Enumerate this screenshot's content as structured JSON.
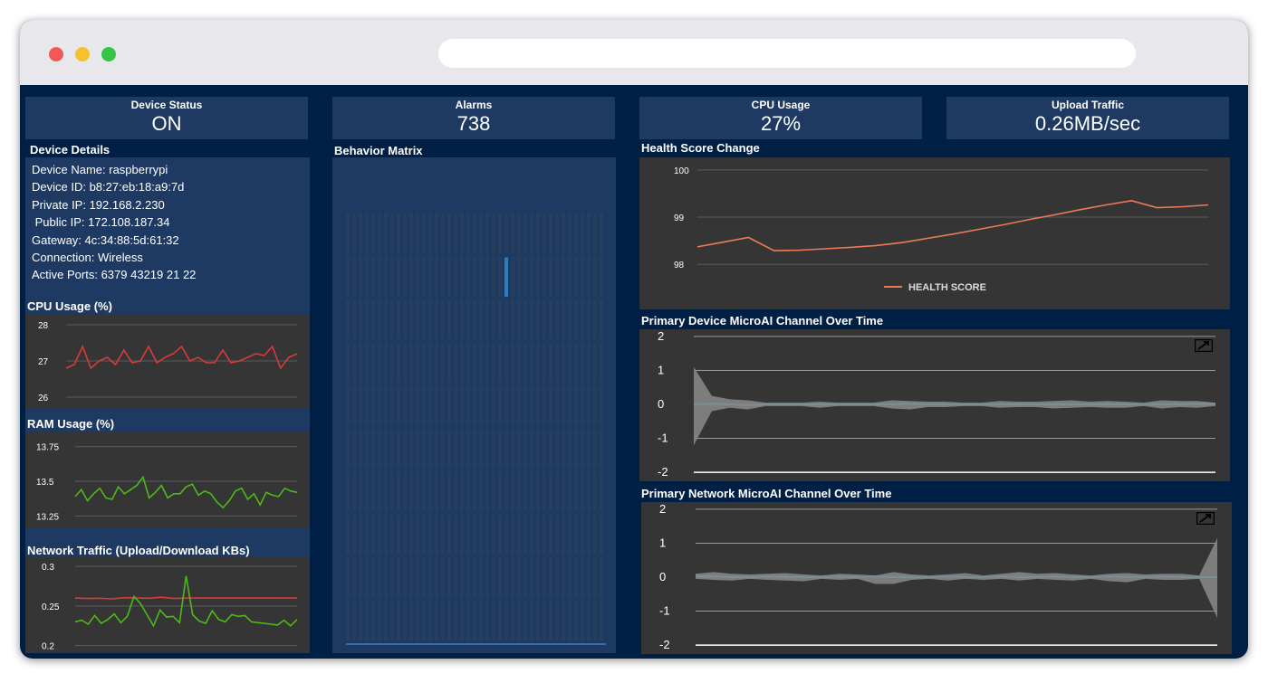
{
  "stats": [
    {
      "label": "Device Status",
      "value": "ON"
    },
    {
      "label": "Alarms",
      "value": "738"
    },
    {
      "label": "CPU Usage",
      "value": "27%"
    },
    {
      "label": "Upload Traffic",
      "value": "0.26MB/sec"
    }
  ],
  "device_details": {
    "title": "Device Details",
    "rows": [
      "Device Name: raspberrypi",
      "Device ID: b8:27:eb:18:a9:7d",
      "Private IP: 192.168.2.230",
      " Public IP: 172.108.187.34",
      "Gateway: 4c:34:88:5d:61:32",
      "Connection: Wireless",
      "Active Ports: 6379 43219 21 22"
    ]
  },
  "behavior_matrix": {
    "title": "Behavior Matrix",
    "columns": 41,
    "rows": 10,
    "highlight": {
      "column": 25,
      "row": 1
    },
    "colors": {
      "cell": "#263f5e",
      "highlight": "#2e7dbf"
    }
  },
  "chart_data": [
    {
      "type": "line",
      "title": "CPU Usage (%)",
      "ylim": [
        25.8,
        28.2
      ],
      "yticks": [
        "28",
        "27",
        "26"
      ],
      "series": [
        {
          "color": "#d93a3a",
          "values": [
            26.8,
            26.9,
            27.4,
            26.8,
            27.0,
            27.1,
            26.9,
            27.3,
            26.95,
            27.0,
            27.4,
            26.95,
            27.1,
            27.2,
            27.4,
            27.0,
            27.1,
            26.95,
            26.95,
            27.3,
            26.95,
            27.0,
            27.1,
            27.2,
            27.15,
            27.4,
            26.8,
            27.1,
            27.2
          ]
        }
      ]
    },
    {
      "type": "line",
      "title": "RAM Usage (%)",
      "ylim": [
        13.2,
        13.82
      ],
      "yticks": [
        "13.75",
        "13.5",
        "13.25"
      ],
      "series": [
        {
          "color": "#4db81a",
          "values": [
            13.39,
            13.44,
            13.36,
            13.41,
            13.45,
            13.38,
            13.37,
            13.46,
            13.41,
            13.44,
            13.47,
            13.53,
            13.38,
            13.42,
            13.47,
            13.38,
            13.41,
            13.41,
            13.46,
            13.48,
            13.4,
            13.43,
            13.41,
            13.35,
            13.31,
            13.36,
            13.43,
            13.45,
            13.37,
            13.41,
            13.33,
            13.42,
            13.4,
            13.39,
            13.45,
            13.43,
            13.42
          ]
        }
      ]
    },
    {
      "type": "line",
      "title": "Network Traffic (Upload/Download KBs)",
      "ylim": [
        0.195,
        0.307
      ],
      "yticks": [
        "0.3",
        "0.25",
        "0.2"
      ],
      "series": [
        {
          "color": "#d93a3a",
          "values": [
            0.26,
            0.2595,
            0.2598,
            0.259,
            0.2605,
            0.26,
            0.2598,
            0.261,
            0.2595,
            0.26,
            0.26,
            0.26,
            0.26,
            0.26,
            0.26,
            0.26,
            0.26,
            0.26,
            0.26
          ]
        },
        {
          "color": "#4db81a",
          "values": [
            0.23,
            0.232,
            0.227,
            0.238,
            0.228,
            0.233,
            0.24,
            0.229,
            0.237,
            0.262,
            0.253,
            0.239,
            0.225,
            0.245,
            0.236,
            0.237,
            0.229,
            0.288,
            0.239,
            0.231,
            0.228,
            0.244,
            0.233,
            0.23,
            0.239,
            0.237,
            0.238,
            0.23,
            0.229,
            0.228,
            0.227,
            0.226,
            0.232,
            0.225,
            0.233
          ]
        }
      ]
    },
    {
      "type": "line",
      "title": "Health Score Change",
      "ylim": [
        97.2,
        100.15
      ],
      "yticks": [
        "100",
        "99",
        "98"
      ],
      "legend": "HEALTH SCORE",
      "series": [
        {
          "name": "HEALTH SCORE",
          "color": "#ec7b55",
          "values": [
            98.37,
            98.47,
            98.57,
            98.29,
            98.3,
            98.33,
            98.36,
            98.4,
            98.46,
            98.55,
            98.64,
            98.74,
            98.84,
            98.95,
            99.05,
            99.16,
            99.26,
            99.35,
            99.2,
            99.22,
            99.26
          ]
        }
      ]
    },
    {
      "type": "area",
      "title": "Primary Device MicroAI Channel Over Time",
      "ylim": [
        -2.05,
        2.05
      ],
      "yticks": [
        "2",
        "1",
        "0",
        "-1",
        "-2"
      ],
      "series": [
        {
          "color": "#3e9bd8",
          "values": [
            0.0,
            0.02,
            0.0,
            -0.02,
            0.0,
            0.0,
            0.0,
            0.0,
            0.0,
            0.0,
            0.0,
            0.0,
            0.02,
            0.0,
            0.0,
            0.0,
            0.0,
            0.0,
            0.0,
            0.0,
            0.0,
            0.0,
            0.0,
            0.0,
            0.0,
            0.0,
            0.0,
            0.0,
            0.02,
            0.02
          ]
        },
        {
          "color": "#8a8a8a",
          "upper": [
            1.1,
            0.25,
            0.15,
            0.12,
            0.05,
            0.05,
            0.05,
            0.08,
            0.05,
            0.05,
            0.05,
            0.12,
            0.1,
            0.08,
            0.08,
            0.05,
            0.05,
            0.1,
            0.08,
            0.08,
            0.1,
            0.12,
            0.08,
            0.1,
            0.08,
            0.05,
            0.12,
            0.1,
            0.1,
            0.05
          ],
          "lower": [
            -1.2,
            -0.2,
            -0.1,
            -0.15,
            -0.05,
            -0.05,
            -0.05,
            -0.1,
            -0.05,
            -0.05,
            -0.05,
            -0.12,
            -0.15,
            -0.08,
            -0.08,
            -0.05,
            -0.05,
            -0.1,
            -0.08,
            -0.08,
            -0.12,
            -0.1,
            -0.08,
            -0.1,
            -0.1,
            -0.05,
            -0.12,
            -0.08,
            -0.1,
            -0.05
          ]
        }
      ]
    },
    {
      "type": "area",
      "title": "Primary Network MicroAI Channel Over Time",
      "ylim": [
        -2.05,
        2.05
      ],
      "yticks": [
        "2",
        "1",
        "0",
        "-1",
        "-2"
      ],
      "series": [
        {
          "color": "#3e9bd8",
          "values": [
            0.05,
            0.02,
            0.0,
            0.0,
            0.02,
            0.0,
            0.0,
            0.0,
            0.02,
            0.0,
            0.02,
            0.0,
            0.0,
            0.0,
            0.02,
            0.0,
            0.0,
            0.02,
            0.0,
            0.0,
            0.02,
            0.0,
            0.0,
            0.02,
            0.0,
            0.0,
            0.02,
            0.0,
            0.0,
            0.0
          ]
        },
        {
          "color": "#8a8a8a",
          "upper": [
            0.1,
            0.15,
            0.1,
            0.08,
            0.1,
            0.12,
            0.08,
            0.05,
            0.1,
            0.08,
            0.05,
            0.15,
            0.08,
            0.05,
            0.08,
            0.12,
            0.05,
            0.1,
            0.15,
            0.1,
            0.12,
            0.08,
            0.05,
            0.1,
            0.12,
            0.08,
            0.1,
            0.1,
            0.05,
            1.15
          ],
          "lower": [
            -0.05,
            -0.08,
            -0.1,
            -0.05,
            -0.08,
            -0.1,
            -0.12,
            -0.05,
            -0.08,
            -0.05,
            -0.2,
            -0.2,
            -0.08,
            -0.05,
            -0.1,
            -0.05,
            -0.08,
            -0.05,
            -0.1,
            -0.05,
            -0.08,
            -0.1,
            -0.05,
            -0.12,
            -0.15,
            -0.05,
            -0.08,
            -0.08,
            -0.05,
            -1.2
          ]
        }
      ]
    }
  ]
}
